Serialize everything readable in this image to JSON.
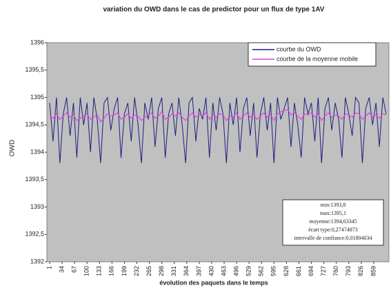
{
  "chart_data": {
    "type": "line",
    "title": "variation du OWD dans le cas de predictor pour un flux de type 1AV",
    "y_label": "OWD",
    "x_label": "évolution des paquets dans le temps",
    "x": [
      1,
      10,
      19,
      28,
      37,
      46,
      55,
      64,
      73,
      82,
      91,
      100,
      109,
      118,
      127,
      136,
      145,
      154,
      163,
      172,
      181,
      190,
      199,
      208,
      217,
      226,
      235,
      244,
      253,
      262,
      271,
      280,
      289,
      298,
      307,
      316,
      325,
      334,
      343,
      352,
      361,
      370,
      379,
      388,
      397,
      406,
      415,
      424,
      433,
      442,
      451,
      460,
      469,
      478,
      487,
      496,
      505,
      514,
      523,
      532,
      541,
      550,
      559,
      568,
      577,
      586,
      595,
      604,
      613,
      622,
      631,
      640,
      649,
      658,
      667,
      676,
      685,
      694,
      703,
      712,
      721,
      730,
      739,
      748,
      757,
      766,
      775,
      784,
      793,
      802,
      811,
      820,
      829,
      838,
      847,
      856,
      865,
      874,
      883,
      892
    ],
    "series": [
      {
        "name": "courbe du OWD",
        "color": "#1c1c80",
        "values": [
          1394.9,
          1394.2,
          1395.0,
          1393.8,
          1394.7,
          1395.0,
          1394.3,
          1394.9,
          1393.9,
          1395.0,
          1394.5,
          1394.9,
          1394.0,
          1395.0,
          1394.6,
          1393.8,
          1394.9,
          1395.0,
          1394.4,
          1394.8,
          1395.0,
          1393.9,
          1394.7,
          1394.9,
          1394.2,
          1395.0,
          1394.5,
          1393.8,
          1394.9,
          1394.6,
          1395.0,
          1394.1,
          1394.8,
          1395.0,
          1393.9,
          1394.7,
          1394.9,
          1394.3,
          1395.0,
          1394.5,
          1393.8,
          1394.9,
          1395.0,
          1394.2,
          1394.8,
          1394.6,
          1395.0,
          1393.9,
          1394.9,
          1394.4,
          1395.0,
          1394.7,
          1393.8,
          1394.9,
          1394.5,
          1395.0,
          1394.0,
          1394.8,
          1395.0,
          1394.3,
          1394.9,
          1393.9,
          1394.7,
          1395.0,
          1394.4,
          1394.9,
          1393.8,
          1395.0,
          1394.6,
          1394.8,
          1395.0,
          1394.1,
          1394.9,
          1394.5,
          1393.9,
          1395.0,
          1394.7,
          1394.9,
          1394.2,
          1395.0,
          1393.8,
          1394.8,
          1395.0,
          1394.4,
          1394.9,
          1394.6,
          1393.9,
          1395.0,
          1394.7,
          1394.3,
          1395.0,
          1394.9,
          1393.8,
          1394.8,
          1395.0,
          1394.5,
          1394.9,
          1394.1,
          1395.0,
          1394.7
        ]
      },
      {
        "name": "courbe de la moyenne mobile",
        "color": "#e040e0",
        "values": [
          1394.65,
          1394.62,
          1394.7,
          1394.6,
          1394.66,
          1394.72,
          1394.64,
          1394.68,
          1394.58,
          1394.62,
          1394.66,
          1394.7,
          1394.6,
          1394.64,
          1394.68,
          1394.56,
          1394.62,
          1394.7,
          1394.66,
          1394.68,
          1394.72,
          1394.6,
          1394.64,
          1394.7,
          1394.62,
          1394.68,
          1394.66,
          1394.58,
          1394.64,
          1394.68,
          1394.72,
          1394.62,
          1394.66,
          1394.74,
          1394.6,
          1394.64,
          1394.7,
          1394.66,
          1394.72,
          1394.64,
          1394.58,
          1394.66,
          1394.72,
          1394.64,
          1394.68,
          1394.66,
          1394.72,
          1394.6,
          1394.68,
          1394.64,
          1394.7,
          1394.68,
          1394.58,
          1394.66,
          1394.64,
          1394.72,
          1394.6,
          1394.66,
          1394.72,
          1394.64,
          1394.68,
          1394.6,
          1394.66,
          1394.72,
          1394.64,
          1394.68,
          1394.58,
          1394.7,
          1394.74,
          1394.76,
          1394.78,
          1394.68,
          1394.72,
          1394.66,
          1394.6,
          1394.7,
          1394.68,
          1394.72,
          1394.64,
          1394.7,
          1394.58,
          1394.66,
          1394.72,
          1394.64,
          1394.68,
          1394.66,
          1394.6,
          1394.7,
          1394.68,
          1394.64,
          1394.72,
          1394.7,
          1394.6,
          1394.66,
          1394.72,
          1394.64,
          1394.68,
          1394.62,
          1394.7,
          1394.68
        ]
      }
    ],
    "xlim": [
      1,
      892
    ],
    "xticks": [
      1,
      34,
      67,
      100,
      133,
      166,
      199,
      232,
      265,
      298,
      331,
      364,
      397,
      430,
      463,
      496,
      529,
      562,
      595,
      628,
      661,
      694,
      727,
      760,
      793,
      826,
      859
    ],
    "ylim": [
      1392,
      1396
    ],
    "yticks": [
      1392,
      {
        "value": 1392.5,
        "label": "1392,5"
      },
      1393,
      {
        "value": 1393.5,
        "label": "1393,5"
      },
      1394,
      {
        "value": 1394.5,
        "label": "1394,5"
      },
      1395,
      {
        "value": 1395.5,
        "label": "1395,5"
      },
      1396
    ],
    "stats": [
      "min:1393,8",
      "max:1395,1",
      "moyenne:1394,63345",
      "écart type:0,27474873",
      "intervalle de confiance:0,01804034"
    ],
    "legend": "top-right"
  }
}
